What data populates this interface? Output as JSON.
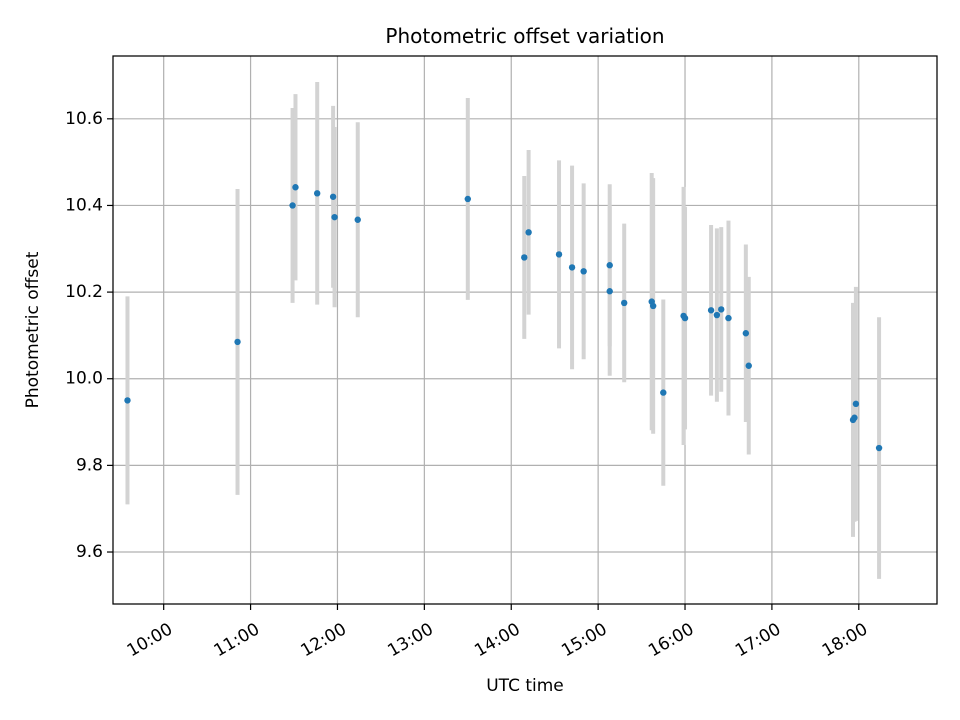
{
  "chart_data": {
    "type": "scatter",
    "title": "Photometric offset variation",
    "xlabel": "UTC time",
    "ylabel": "Photometric offset",
    "x_tick_labels": [
      "10:00",
      "11:00",
      "12:00",
      "13:00",
      "14:00",
      "15:00",
      "16:00",
      "17:00",
      "18:00"
    ],
    "y_tick_labels": [
      "9.6",
      "9.8",
      "10.0",
      "10.2",
      "10.4",
      "10.6"
    ],
    "xlim": [
      "09:25",
      "18:54"
    ],
    "ylim": [
      9.48,
      10.745
    ],
    "grid": true,
    "legend": "none",
    "colors": {
      "point": "#1f77b4",
      "errorbar": "#d3d3d3",
      "grid": "#b0b0b0",
      "axes": "#000000"
    },
    "points": [
      {
        "time": "09:35",
        "y": 9.95,
        "yerr": 0.24
      },
      {
        "time": "10:51",
        "y": 10.085,
        "yerr": 0.353
      },
      {
        "time": "11:29",
        "y": 10.4,
        "yerr": 0.225
      },
      {
        "time": "11:31",
        "y": 10.442,
        "yerr": 0.215
      },
      {
        "time": "11:46",
        "y": 10.428,
        "yerr": 0.257
      },
      {
        "time": "11:57",
        "y": 10.42,
        "yerr": 0.21
      },
      {
        "time": "11:58",
        "y": 10.373,
        "yerr": 0.208
      },
      {
        "time": "12:14",
        "y": 10.367,
        "yerr": 0.225
      },
      {
        "time": "13:30",
        "y": 10.415,
        "yerr": 0.233
      },
      {
        "time": "14:09",
        "y": 10.28,
        "yerr": 0.188
      },
      {
        "time": "14:12",
        "y": 10.338,
        "yerr": 0.19
      },
      {
        "time": "14:33",
        "y": 10.287,
        "yerr": 0.217
      },
      {
        "time": "14:42",
        "y": 10.257,
        "yerr": 0.235
      },
      {
        "time": "14:50",
        "y": 10.248,
        "yerr": 0.203
      },
      {
        "time": "15:08",
        "y": 10.262,
        "yerr": 0.187
      },
      {
        "time": "15:08",
        "y": 10.202,
        "yerr": 0.195
      },
      {
        "time": "15:18",
        "y": 10.175,
        "yerr": 0.183
      },
      {
        "time": "15:37",
        "y": 10.178,
        "yerr": 0.297
      },
      {
        "time": "15:38",
        "y": 10.168,
        "yerr": 0.295
      },
      {
        "time": "15:45",
        "y": 9.968,
        "yerr": 0.215
      },
      {
        "time": "15:59",
        "y": 10.145,
        "yerr": 0.298
      },
      {
        "time": "16:00",
        "y": 10.14,
        "yerr": 0.257
      },
      {
        "time": "16:18",
        "y": 10.158,
        "yerr": 0.197
      },
      {
        "time": "16:22",
        "y": 10.147,
        "yerr": 0.2
      },
      {
        "time": "16:25",
        "y": 10.16,
        "yerr": 0.19
      },
      {
        "time": "16:30",
        "y": 10.14,
        "yerr": 0.225
      },
      {
        "time": "16:42",
        "y": 10.105,
        "yerr": 0.205
      },
      {
        "time": "16:44",
        "y": 10.03,
        "yerr": 0.205
      },
      {
        "time": "17:56",
        "y": 9.905,
        "yerr": 0.27
      },
      {
        "time": "17:57",
        "y": 9.91,
        "yerr": 0.24
      },
      {
        "time": "17:58",
        "y": 9.942,
        "yerr": 0.27
      },
      {
        "time": "18:14",
        "y": 9.84,
        "yerr": 0.302
      }
    ]
  }
}
